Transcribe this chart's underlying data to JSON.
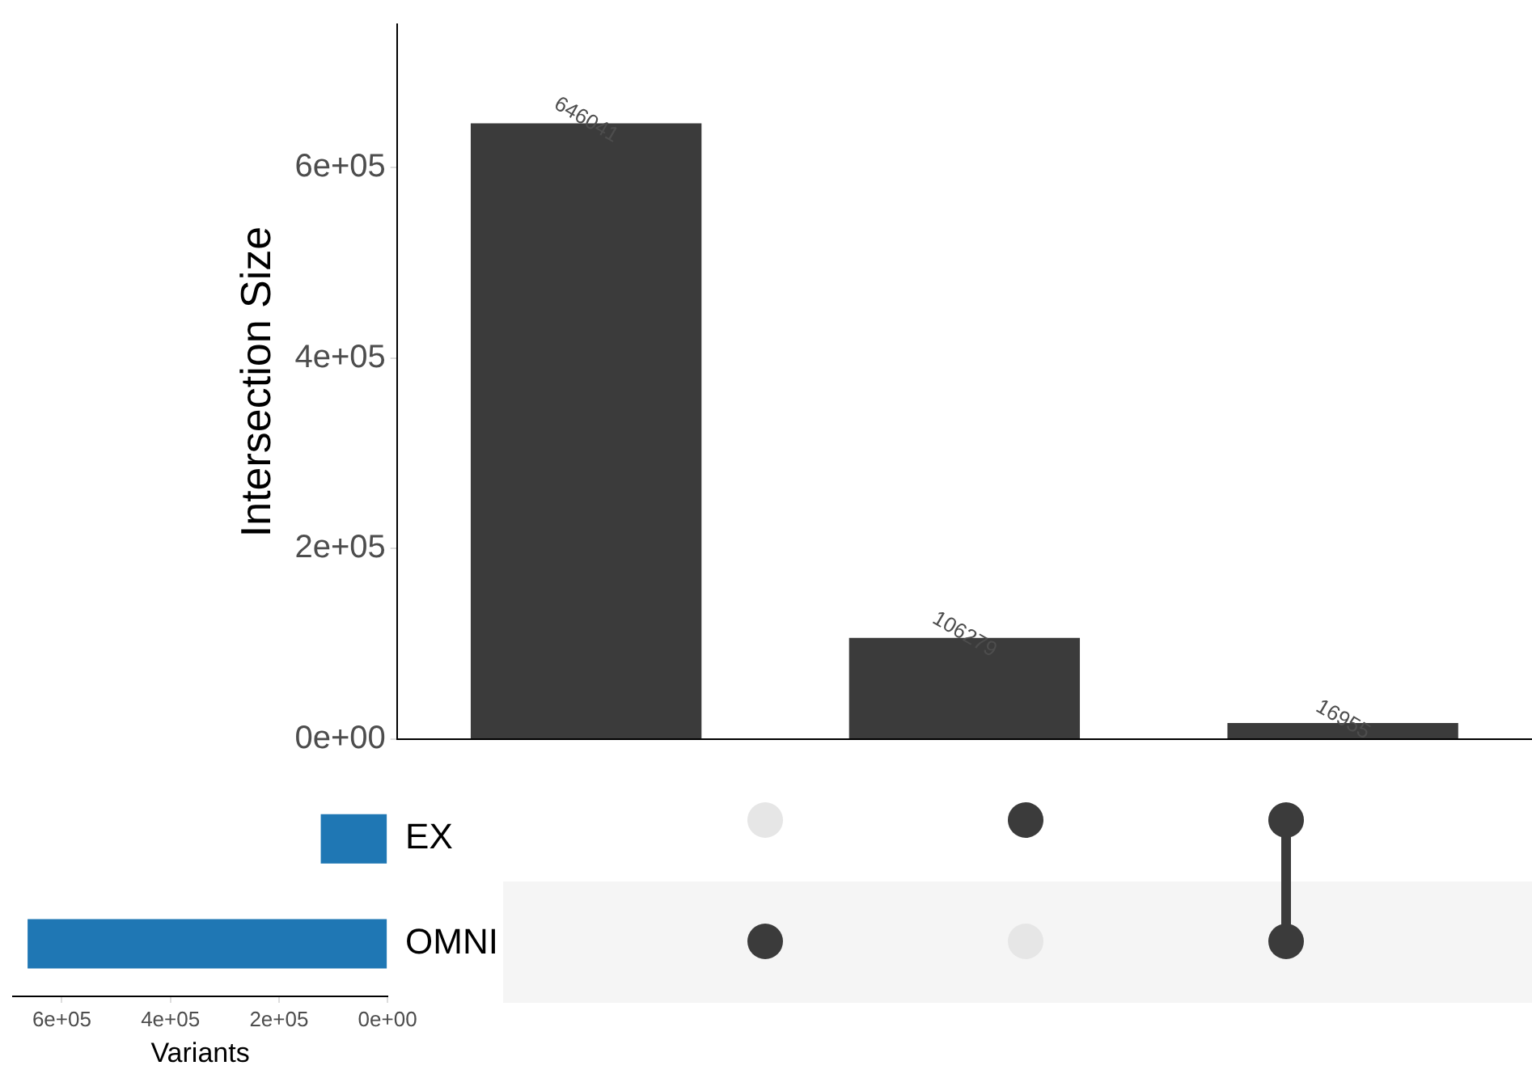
{
  "chart_data": [
    {
      "type": "bar",
      "ylabel": "Intersection Size",
      "categories": [
        null,
        null,
        null
      ],
      "values": [
        646041,
        106279,
        16955
      ],
      "color": "#3b3b3b",
      "ylim": [
        0,
        750000
      ],
      "yticks": [
        {
          "value": 0,
          "label": "0e+00"
        },
        {
          "value": 200000,
          "label": "2e+05"
        },
        {
          "value": 400000,
          "label": "4e+05"
        },
        {
          "value": 600000,
          "label": "6e+05"
        }
      ],
      "data_labels": true,
      "tick_labels": "y",
      "grid": false,
      "legend": false
    },
    {
      "type": "bar",
      "orientation": "horizontal",
      "xlabel": "Variants",
      "categories": [
        "EX",
        "OMNI"
      ],
      "values": [
        123000,
        663000
      ],
      "color": "#1f77b4",
      "xlim": [
        690000,
        0
      ],
      "xticks": [
        {
          "value": 600000,
          "label": "6e+05"
        },
        {
          "value": 400000,
          "label": "4e+05"
        },
        {
          "value": 200000,
          "label": "2e+05"
        },
        {
          "value": 0,
          "label": "0e+00"
        }
      ],
      "grid": false,
      "legend": false
    }
  ]
}
